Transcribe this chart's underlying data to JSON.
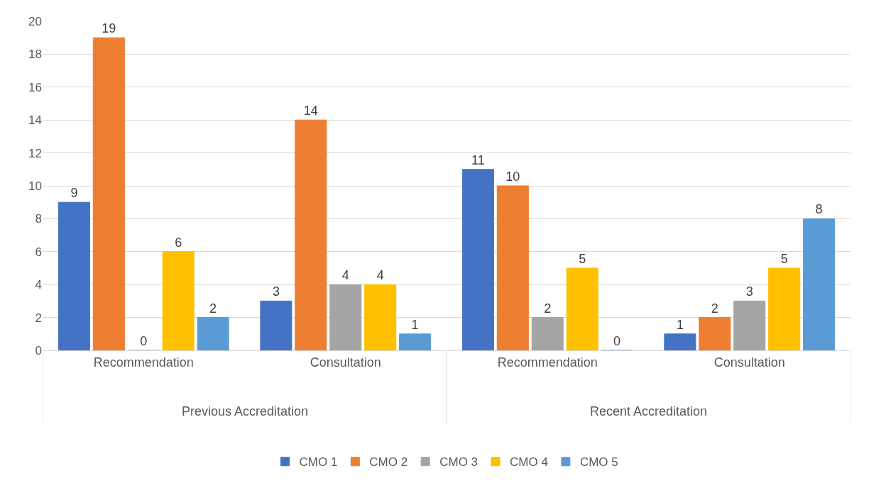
{
  "chart_data": {
    "type": "bar",
    "categories": [
      "Recommendation",
      "Consultation",
      "Recommendation",
      "Consultation"
    ],
    "series": [
      {
        "name": "CMO 1",
        "color": "#4472c4",
        "values": [
          9,
          3,
          11,
          1
        ]
      },
      {
        "name": "CMO 2",
        "color": "#ed7d31",
        "values": [
          19,
          14,
          10,
          2
        ]
      },
      {
        "name": "CMO 3",
        "color": "#a5a5a5",
        "values": [
          0,
          4,
          2,
          3
        ]
      },
      {
        "name": "CMO 4",
        "color": "#ffc000",
        "values": [
          6,
          4,
          5,
          5
        ]
      },
      {
        "name": "CMO 5",
        "color": "#5b9bd5",
        "values": [
          2,
          1,
          0,
          8
        ]
      }
    ],
    "annotations": [
      "Previous Accreditation",
      "Recent Accreditation"
    ],
    "ylim": [
      0,
      20
    ],
    "yticks": [
      0,
      2,
      4,
      6,
      8,
      10,
      12,
      14,
      16,
      18,
      20
    ],
    "grid": "y",
    "legend": "bottom",
    "data_labels": true
  }
}
